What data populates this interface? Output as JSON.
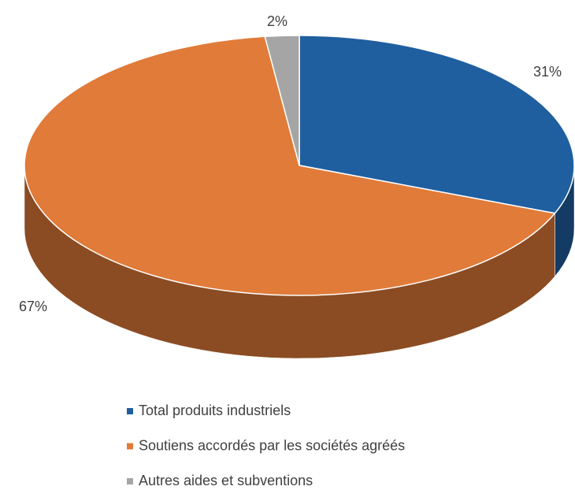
{
  "chart_data": {
    "type": "pie",
    "categories": [
      "Total produits industriels",
      "Soutiens accordés par les sociétés agréés",
      "Autres aides et subventions"
    ],
    "values": [
      31,
      67,
      2
    ],
    "value_labels": [
      "31%",
      "67%",
      "2%"
    ],
    "colors": [
      "#1f5fa0",
      "#e07b39",
      "#a5a5a5"
    ]
  }
}
